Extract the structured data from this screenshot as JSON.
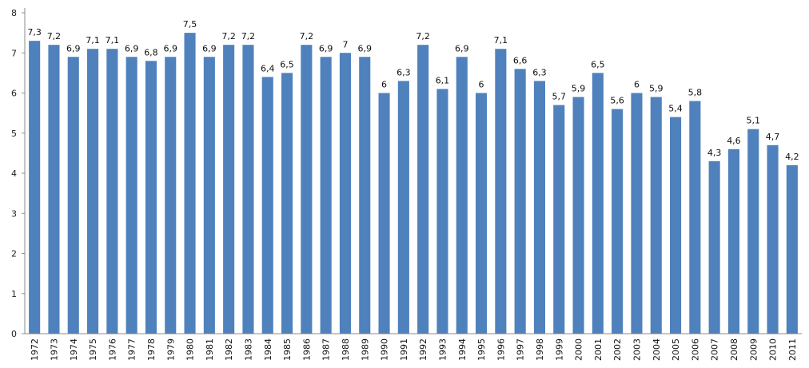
{
  "chart_data": {
    "type": "bar",
    "title": "",
    "xlabel": "",
    "ylabel": "",
    "ylim": [
      0,
      8
    ],
    "yticks": [
      0,
      1,
      2,
      3,
      4,
      5,
      6,
      7,
      8
    ],
    "grid": false,
    "legend": "none",
    "bar_color": "#4F81BD",
    "categories": [
      "1972",
      "1973",
      "1974",
      "1975",
      "1976",
      "1977",
      "1978",
      "1979",
      "1980",
      "1981",
      "1982",
      "1983",
      "1984",
      "1985",
      "1986",
      "1987",
      "1988",
      "1989",
      "1990",
      "1991",
      "1992",
      "1993",
      "1994",
      "1995",
      "1996",
      "1997",
      "1998",
      "1999",
      "2000",
      "2001",
      "2002",
      "2003",
      "2004",
      "2005",
      "2006",
      "2007",
      "2008",
      "2009",
      "2010",
      "2011"
    ],
    "values": [
      7.3,
      7.2,
      6.9,
      7.1,
      7.1,
      6.9,
      6.8,
      6.9,
      7.5,
      6.9,
      7.2,
      7.2,
      6.4,
      6.5,
      7.2,
      6.9,
      7,
      6.9,
      6,
      6.3,
      7.2,
      6.1,
      6.9,
      6,
      7.1,
      6.6,
      6.3,
      5.7,
      5.9,
      6.5,
      5.6,
      6,
      5.9,
      5.4,
      5.8,
      4.3,
      4.6,
      5.1,
      4.7,
      4.2
    ],
    "data_labels": [
      "7,3",
      "7,2",
      "6,9",
      "7,1",
      "7,1",
      "6,9",
      "6,8",
      "6,9",
      "7,5",
      "6,9",
      "7,2",
      "7,2",
      "6,4",
      "6,5",
      "7,2",
      "6,9",
      "7",
      "6,9",
      "6",
      "6,3",
      "7,2",
      "6,1",
      "6,9",
      "6",
      "7,1",
      "6,6",
      "6,3",
      "5,7",
      "5,9",
      "6,5",
      "5,6",
      "6",
      "5,9",
      "5,4",
      "5,8",
      "4,3",
      "4,6",
      "5,1",
      "4,7",
      "4,2"
    ]
  }
}
